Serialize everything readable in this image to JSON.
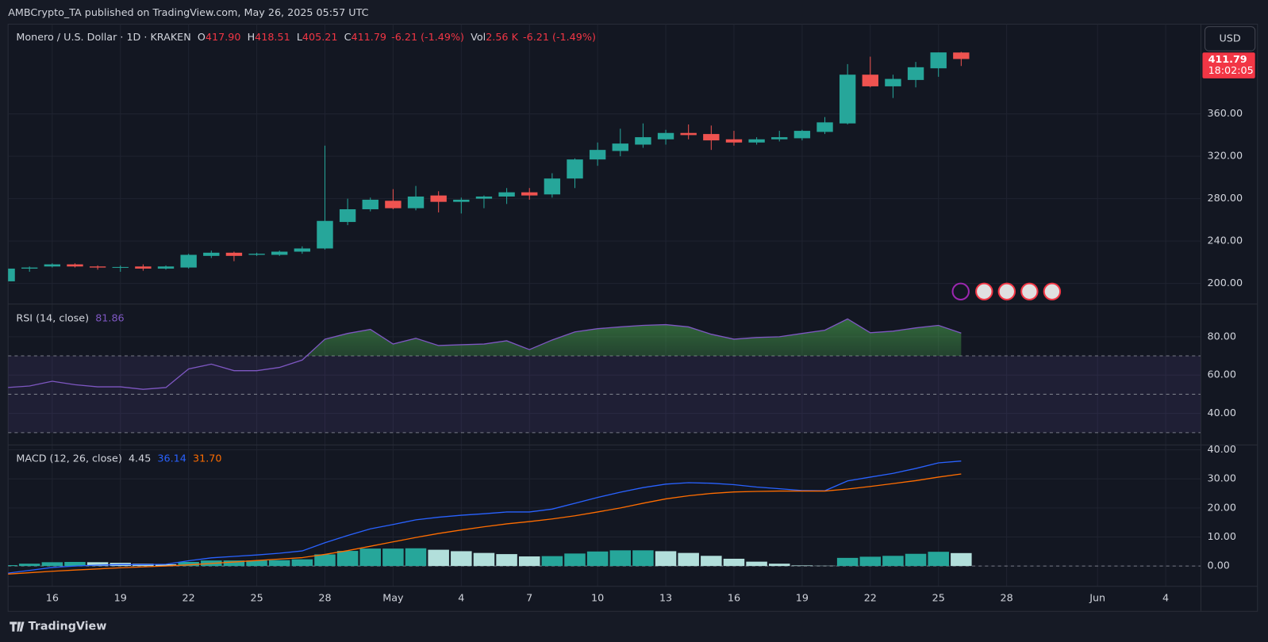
{
  "header": {
    "publisher": "AMBCrypto_TA published on TradingView.com, May 26, 2025 05:57 UTC",
    "brand": "TradingView"
  },
  "chart_data": [
    {
      "type": "candlestick",
      "title": "Monero / U.S. Dollar · 1D · KRAKEN",
      "legend": [
        {
          "key": "O",
          "value": "417.90"
        },
        {
          "key": "H",
          "value": "418.51"
        },
        {
          "key": "L",
          "value": "405.21"
        },
        {
          "key": "C",
          "value": "411.79"
        },
        {
          "key": null,
          "value": "-6.21 (-1.49%)"
        },
        {
          "key": "Vol",
          "value": "2.56 K"
        },
        {
          "key": null,
          "value": "-6.21 (-1.49%)"
        }
      ],
      "currency": "USD",
      "last_price_label": "411.79",
      "countdown": "18:02:05",
      "up_color": "#26a69a",
      "down_color": "#ef5350",
      "open": [
        202,
        214,
        216,
        218,
        216,
        215,
        216,
        214,
        215,
        226,
        229,
        227,
        227,
        230,
        233,
        258,
        270,
        278,
        271,
        283,
        277,
        280,
        282,
        286,
        284,
        299,
        317,
        325,
        331,
        336,
        342,
        341,
        336,
        333,
        336,
        337,
        343,
        351,
        397,
        386,
        392,
        403,
        417.9,
        null,
        null,
        null,
        null,
        null,
        null,
        null,
        null,
        null,
        null
      ],
      "high": [
        215,
        216,
        219,
        219,
        217,
        217,
        218,
        217,
        228,
        231,
        230,
        229,
        231,
        235,
        330,
        280,
        281,
        289,
        292,
        287,
        281,
        283,
        290,
        290,
        304,
        318,
        333,
        346,
        351,
        345,
        350,
        349,
        344,
        338,
        344,
        345,
        357,
        407,
        414,
        397,
        409,
        418,
        418.51,
        null,
        null,
        null,
        null,
        null,
        null,
        null,
        null,
        null,
        null
      ],
      "low": [
        200,
        211,
        215,
        215,
        213,
        211,
        212,
        213,
        214,
        224,
        221,
        226,
        226,
        228,
        232,
        255,
        268,
        270,
        269,
        267,
        266,
        271,
        275,
        279,
        281,
        290,
        311,
        320,
        328,
        331,
        336,
        326,
        330,
        331,
        334,
        335,
        341,
        350,
        385,
        375,
        385,
        395,
        405.21,
        null,
        null,
        null,
        null,
        null,
        null,
        null,
        null,
        null,
        null
      ],
      "close": [
        214,
        215,
        218,
        216,
        215,
        215.5,
        214,
        216,
        227,
        229,
        226,
        228,
        230,
        233,
        259,
        270,
        279,
        271,
        282,
        277,
        279,
        282,
        286,
        283,
        299,
        317,
        326,
        332,
        338,
        342,
        340,
        335,
        333,
        336,
        338,
        344,
        352,
        397,
        386,
        393,
        404,
        418,
        411.79,
        null,
        null,
        null,
        null,
        null,
        null,
        null,
        null,
        null,
        null
      ],
      "ylim": [
        181.7,
        444.6
      ],
      "yticks": [
        {
          "value": 200,
          "label": "200.00"
        },
        {
          "value": 240,
          "label": "240.00"
        },
        {
          "value": 280,
          "label": "280.00"
        },
        {
          "value": 320,
          "label": "320.00"
        },
        {
          "value": 360,
          "label": "360.00"
        }
      ],
      "grid": true
    },
    {
      "type": "rsi",
      "title": "RSI (14, close)",
      "legend_value": "81.86",
      "color": "#7e57c2",
      "values": [
        53.5,
        54.3,
        56.8,
        55,
        53.9,
        53.9,
        52.6,
        53.5,
        63.2,
        65.7,
        62.3,
        62.3,
        64,
        67.8,
        78.7,
        81.7,
        83.8,
        76.2,
        79.2,
        75.4,
        75.8,
        76.2,
        77.9,
        73.3,
        78.3,
        82.5,
        84.2,
        85.1,
        85.9,
        86.3,
        85.1,
        81.3,
        78.7,
        79.6,
        80,
        81.7,
        83.4,
        89.3,
        82.1,
        82.9,
        84.6,
        85.9,
        81.86,
        null,
        null,
        null,
        null,
        null,
        null,
        null,
        null,
        null,
        null
      ],
      "levels": [
        70,
        50,
        30
      ],
      "ylim": [
        24,
        96.4
      ],
      "yticks": [
        {
          "value": 80,
          "label": "80.00"
        },
        {
          "value": 60,
          "label": "60.00"
        },
        {
          "value": 40,
          "label": "40.00"
        }
      ],
      "grid": true
    },
    {
      "type": "macd",
      "title": "MACD (12, 26, close)",
      "legend_values": [
        {
          "value": "4.45",
          "color": "#d1d4dc"
        },
        {
          "value": "36.14",
          "color": "#2962ff"
        },
        {
          "value": "31.70",
          "color": "#ff6d00"
        }
      ],
      "categories": [
        null,
        null,
        "16",
        null,
        null,
        "19",
        null,
        null,
        "22",
        null,
        null,
        "25",
        null,
        null,
        "28",
        null,
        null,
        "May",
        null,
        null,
        "4",
        null,
        null,
        "7",
        null,
        null,
        "10",
        null,
        null,
        "13",
        null,
        null,
        "16",
        null,
        null,
        "19",
        null,
        null,
        "22",
        null,
        null,
        "25",
        null,
        null,
        "28",
        null,
        null,
        null,
        "Jun",
        null,
        null,
        "4",
        null
      ],
      "series": [
        {
          "color": "#2962ff",
          "values": [
            -2.5,
            -1.5,
            -0.5,
            0,
            0.3,
            0.5,
            0.5,
            0.6,
            1.8,
            2.8,
            3.3,
            3.8,
            4.4,
            5.2,
            8,
            10.5,
            12.8,
            14.3,
            15.9,
            16.8,
            17.5,
            18,
            18.6,
            18.6,
            19.6,
            21.6,
            23.6,
            25.4,
            27,
            28.2,
            28.7,
            28.5,
            28,
            27.2,
            26.6,
            26,
            25.9,
            29.3,
            30.6,
            31.9,
            33.6,
            35.5,
            36.14,
            null,
            null,
            null,
            null,
            null,
            null,
            null,
            null,
            null,
            null
          ]
        },
        {
          "color": "#ff6d00",
          "values": [
            -2.8,
            -2.3,
            -1.8,
            -1.4,
            -1,
            -0.6,
            -0.3,
            0,
            0.4,
            0.9,
            1.4,
            1.9,
            2.4,
            2.9,
            4,
            5.3,
            6.8,
            8.3,
            9.8,
            11.2,
            12.4,
            13.5,
            14.5,
            15.3,
            16.2,
            17.3,
            18.6,
            20,
            21.6,
            23.1,
            24.2,
            25,
            25.5,
            25.7,
            25.8,
            25.8,
            25.8,
            26.5,
            27.4,
            28.4,
            29.4,
            30.6,
            31.7,
            null,
            null,
            null,
            null,
            null,
            null,
            null,
            null,
            null,
            null
          ]
        }
      ],
      "histogram": {
        "colors": [
          "#26a69a",
          "#b2dfdb",
          "#ff5252",
          "#ffcdd2"
        ],
        "values": [
          0.3,
          0.8,
          1.3,
          1.4,
          1.3,
          1.1,
          0.8,
          0.6,
          1.4,
          1.9,
          1.9,
          1.9,
          2,
          2.3,
          4,
          5.2,
          6,
          6,
          6.1,
          5.6,
          5.1,
          4.5,
          4.1,
          3.3,
          3.4,
          4.3,
          5,
          5.4,
          5.4,
          5.1,
          4.5,
          3.5,
          2.5,
          1.5,
          0.8,
          0.2,
          0.1,
          2.8,
          3.2,
          3.5,
          4.2,
          4.9,
          4.45,
          null,
          null,
          null,
          null,
          null,
          null,
          null,
          null,
          null,
          null
        ]
      },
      "ylim": [
        -15.6,
        41.4
      ],
      "yticks": [
        {
          "value": 0,
          "label": "0.00"
        },
        {
          "value": 10,
          "label": "10.00"
        },
        {
          "value": 20,
          "label": "20.00"
        },
        {
          "value": 30,
          "label": "30.00"
        },
        {
          "value": 40,
          "label": "40.00"
        }
      ],
      "grid": true
    }
  ]
}
